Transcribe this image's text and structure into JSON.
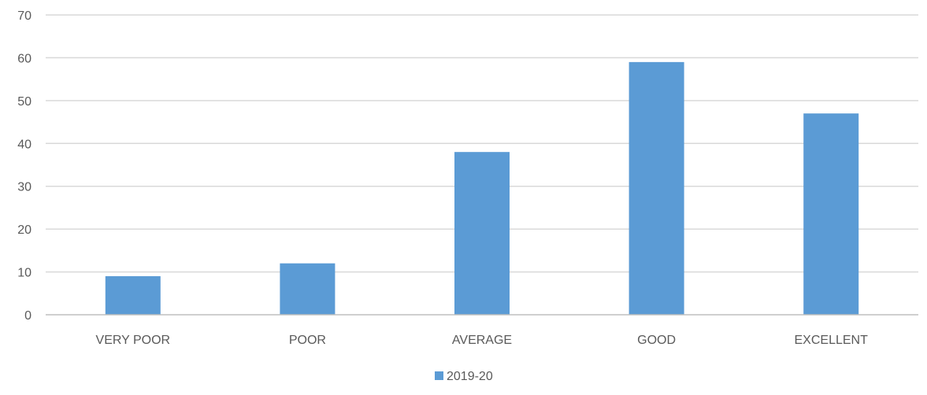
{
  "chart_data": {
    "type": "bar",
    "categories": [
      "VERY POOR",
      "POOR",
      "AVERAGE",
      "GOOD",
      "EXCELLENT"
    ],
    "series": [
      {
        "name": "2019-20",
        "values": [
          9,
          12,
          38,
          59,
          47
        ],
        "color": "#5b9bd5"
      }
    ],
    "ylim": [
      0,
      70
    ],
    "yticks": [
      0,
      10,
      20,
      30,
      40,
      50,
      60,
      70
    ],
    "ytick_labels": [
      "0",
      "10",
      "20",
      "30",
      "40",
      "50",
      "60",
      "70"
    ],
    "grid": true,
    "gridline_color": "#d9d9d9",
    "axis_color": "#bfbfbf",
    "text_color": "#595959",
    "legend": {
      "position": "bottom"
    },
    "title": "",
    "xlabel": "",
    "ylabel": ""
  }
}
